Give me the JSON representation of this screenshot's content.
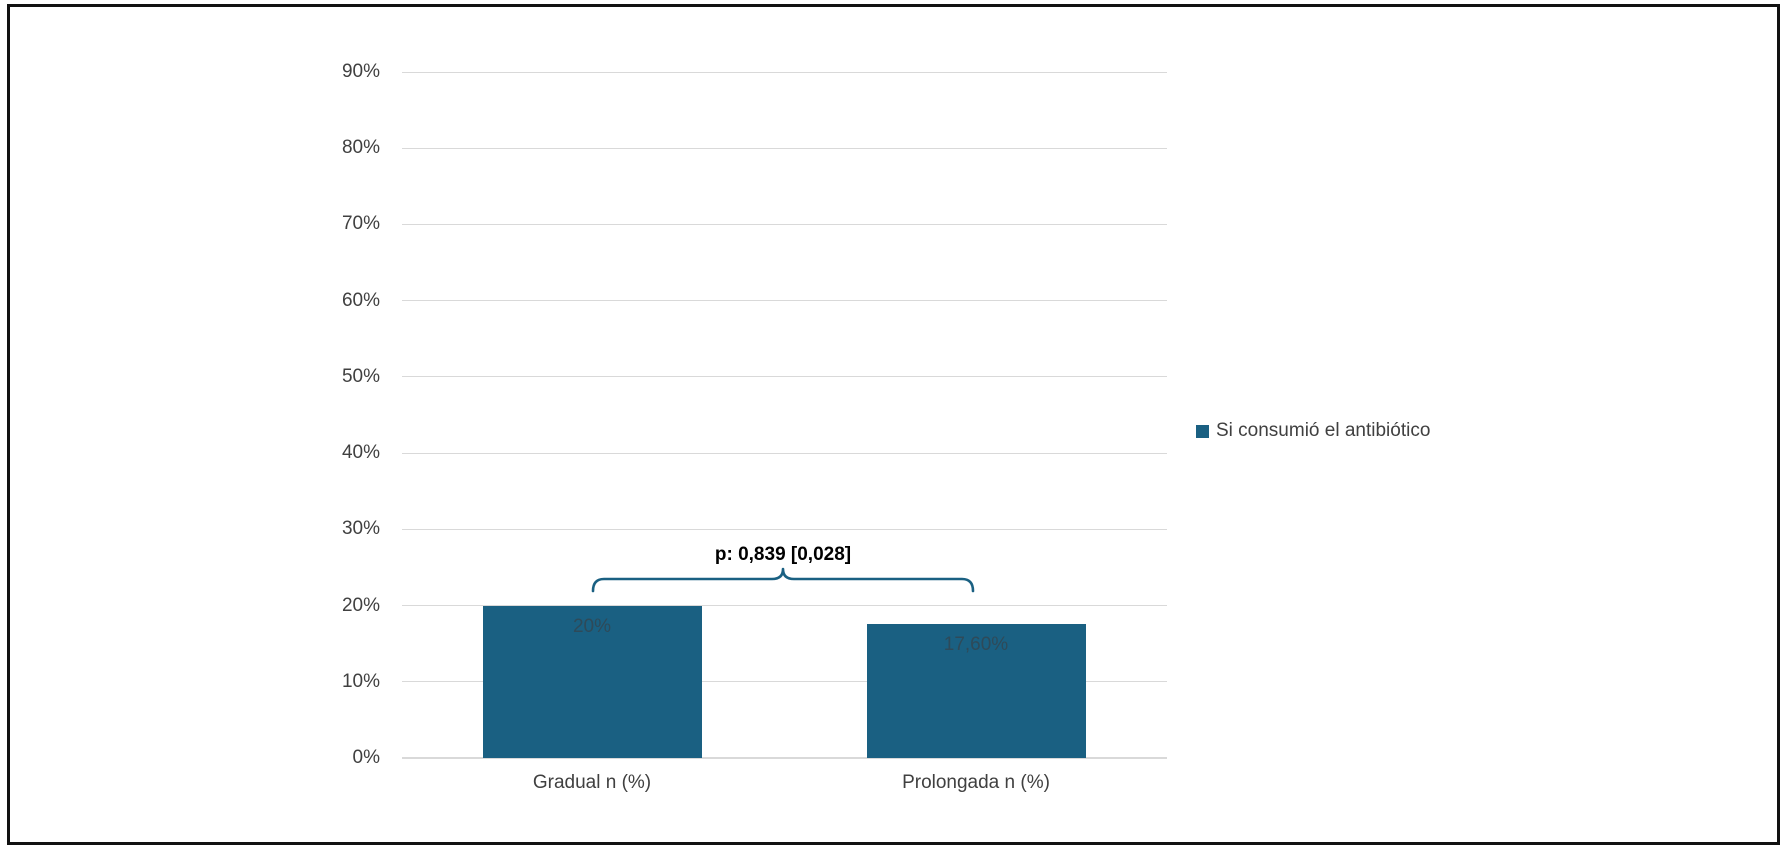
{
  "page": {
    "background": "#ffffff",
    "frame_border_color": "#111111"
  },
  "chart_data": {
    "type": "bar",
    "title": "",
    "categories": [
      "Gradual n (%)",
      "Prolongada n (%)"
    ],
    "series": [
      {
        "name": "Si consumió el antibiótico",
        "color": "#1a6082",
        "values": [
          20,
          17.6
        ],
        "value_labels": [
          "20%",
          "17,60%"
        ]
      }
    ],
    "xlabel": "",
    "ylabel": "",
    "ylim": [
      0,
      90
    ],
    "ytick_interval": 10,
    "ytick_labels": [
      "0%",
      "10%",
      "20%",
      "30%",
      "40%",
      "50%",
      "60%",
      "70%",
      "80%",
      "90%"
    ],
    "grid": "horizontal",
    "gridline_color": "#d9d9d9",
    "legend": {
      "position": "right",
      "entries": [
        {
          "label": "Si consumió el antibiótico",
          "swatch_color": "#1a6082"
        }
      ]
    },
    "annotation": {
      "type": "bracket",
      "text": "p: 0,839 [0,028]",
      "bracket_color": "#1a6082",
      "spans_categories": [
        "Gradual n (%)",
        "Prolongada n (%)"
      ]
    }
  }
}
